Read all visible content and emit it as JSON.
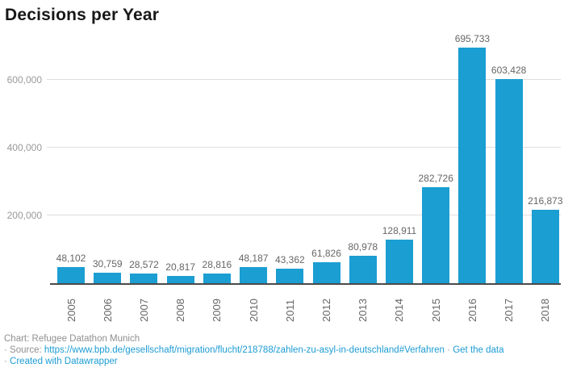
{
  "title": "Decisions per Year",
  "colors": {
    "bar": "#1b9ed2",
    "link": "#1d9cd3",
    "gridline": "#dedede",
    "axis_line": "#4a4a4a",
    "tick_label": "#9a9a9a",
    "value_label": "#666666"
  },
  "chart_data": {
    "type": "bar",
    "title": "Decisions per Year",
    "xlabel": "",
    "ylabel": "",
    "categories": [
      "2005",
      "2006",
      "2007",
      "2008",
      "2009",
      "2010",
      "2011",
      "2012",
      "2013",
      "2014",
      "2015",
      "2016",
      "2017",
      "2018"
    ],
    "values": [
      48102,
      30759,
      28572,
      20817,
      28816,
      48187,
      43362,
      61826,
      80978,
      128911,
      282726,
      695733,
      603428,
      216873
    ],
    "value_labels": [
      "48,102",
      "30,759",
      "28,572",
      "20,817",
      "28,816",
      "48,187",
      "43,362",
      "61,826",
      "80,978",
      "128,911",
      "282,726",
      "695,733",
      "603,428",
      "216,873"
    ],
    "ylim": [
      0,
      743000
    ],
    "yticks": [
      {
        "value": 200000,
        "label": "200,000"
      },
      {
        "value": 400000,
        "label": "400,000"
      },
      {
        "value": 600000,
        "label": "600,000"
      }
    ],
    "grid": "horizontal",
    "legend": "none",
    "bar_color": "#1b9ed2"
  },
  "footer": {
    "chart_credit": "Chart: Refugee Datathon Munich",
    "bullet": "·",
    "source_label": "Source:",
    "source_url": "https://www.bpb.de/gesellschaft/migration/flucht/218788/zahlen-zu-asyl-in-deutschland#Verfahren",
    "get_data_label": "Get the data",
    "created_label": "Created with Datawrapper"
  }
}
